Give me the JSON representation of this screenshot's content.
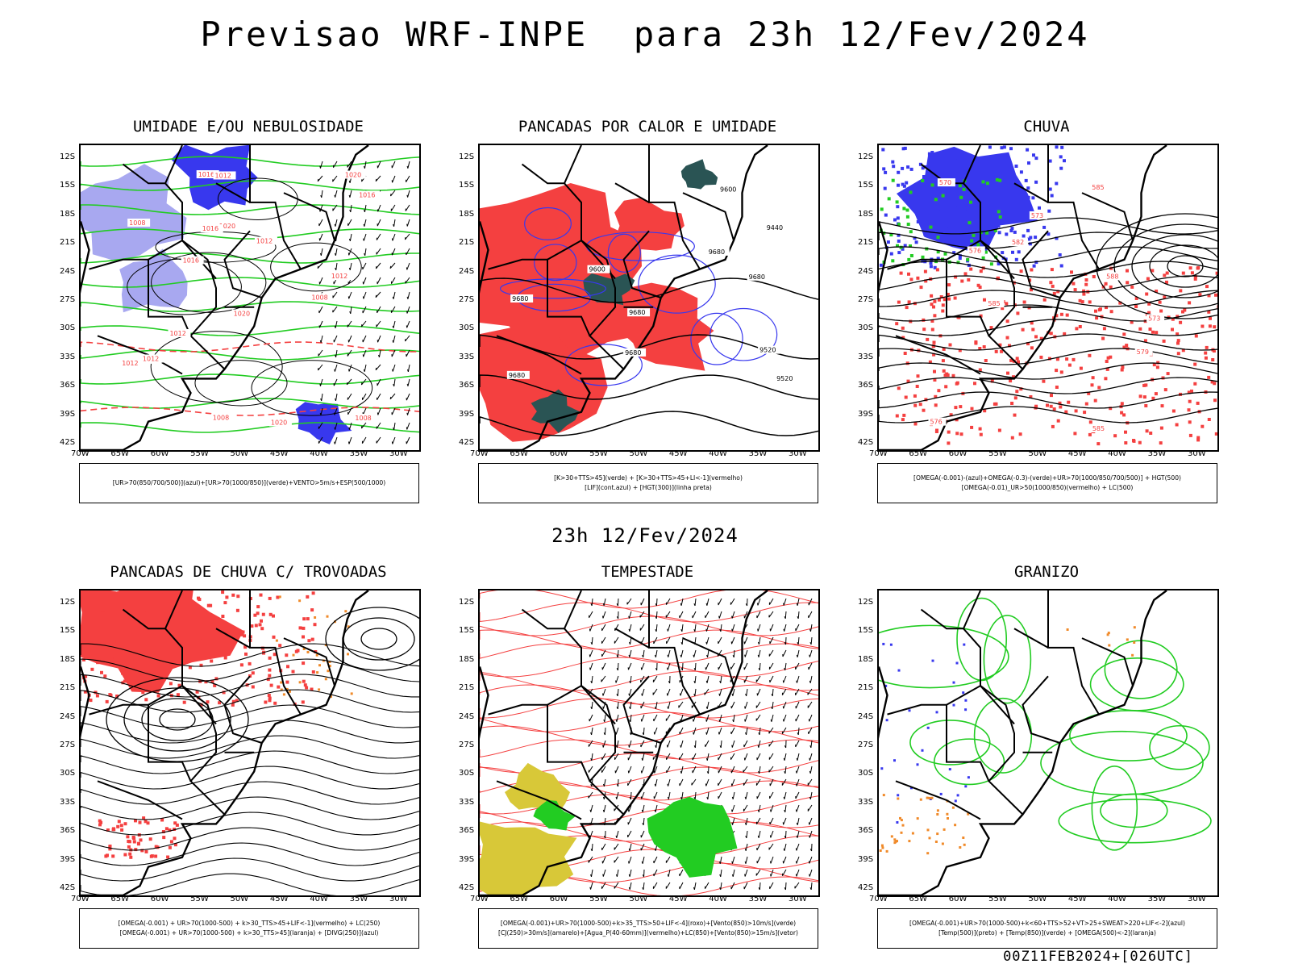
{
  "title": "Previsao WRF-INPE  para 23h 12/Fev/2024",
  "mid_title": "23h 12/Fev/2024",
  "footer": "00Z11FEB2024+[026UTC]",
  "lat_labels": [
    "12S",
    "15S",
    "18S",
    "21S",
    "24S",
    "27S",
    "30S",
    "33S",
    "36S",
    "39S",
    "42S"
  ],
  "lon_labels": [
    "70W",
    "65W",
    "60W",
    "55W",
    "50W",
    "45W",
    "40W",
    "35W",
    "30W"
  ],
  "colors": {
    "red": "#f44040",
    "green": "#22cc22",
    "blue": "#3838ee",
    "lightblue": "#a8a8f0",
    "teal": "#2a5454",
    "yellow": "#d8c838",
    "orange": "#f08a2a"
  },
  "panels": [
    {
      "title": "UMIDADE E/OU NEBULOSIDADE",
      "legend": [
        "[UR>70(850/700/500)](azul)+[UR>70(1000/850)](verde)+VENTO>5m/s+ESP(500/1000)"
      ],
      "contour_labels": [
        "1016",
        "1012",
        "1020",
        "1016",
        "1020",
        "1012",
        "1016",
        "1020",
        "1012",
        "1016",
        "1008",
        "1012",
        "1008",
        "1008",
        "1012",
        "1008",
        "1012",
        "1020",
        "1016"
      ]
    },
    {
      "title": "PANCADAS POR CALOR E UMIDADE",
      "legend": [
        "[K>30+TTS>45](verde) + [K>30+TTS>45+LI<-1](vermelho)",
        "[LIF](cont.azul) + [HGT(300)](linha preta)"
      ],
      "contour_labels": [
        "9680",
        "9680",
        "9680",
        "9680",
        "9680",
        "9600",
        "9520",
        "9440",
        "9600",
        "9520",
        "9680"
      ]
    },
    {
      "title": "CHUVA",
      "legend": [
        "[OMEGA(-0.001)-(azul)+OMEGA(-0.3)-(verde)+UR>70(1000/850/700/500)] + HGT(500)",
        "[OMEGA(-0.01)_UR>50(1000/850)(vermelho) + LC(500)"
      ],
      "contour_labels": [
        "585",
        "585",
        "585",
        "588",
        "582",
        "579",
        "576",
        "573",
        "576",
        "570",
        "573"
      ]
    },
    {
      "title": "PANCADAS DE CHUVA C/ TROVOADAS",
      "legend": [
        "[OMEGA(-0.001) + UR>70(1000-500) + k>30_TTS>45+LIF<-1](vermelho) + LC(250)",
        "[OMEGA(-0.001) + UR>70(1000-500) + k>30_TTS>45](laranja) + [DIVG(250)](azul)"
      ],
      "contour_labels": []
    },
    {
      "title": "TEMPESTADE",
      "legend": [
        "[OMEGA(-0.001)+UR>70(1000-500)+k>35_TTS>50+LIF<-4](roxo)+[Vento(850)>10m/s](verde)",
        "[CJ(250)>30m/s](amarelo)+[Agua_P(40-60mm)](vermelho)+LC(850)+[Vento(850)>15m/s](vetor)"
      ],
      "contour_labels": []
    },
    {
      "title": "GRANIZO",
      "legend": [
        "[OMEGA(-0.001)+UR>70(1000-500)+k<60+TTS>52+VT>25+SWEAT>220+LIF<-2](azul)",
        "[Temp(500)](preto) + [Temp(850)](verde) + [OMEGA(500)<-2](laranja)"
      ],
      "contour_labels": []
    }
  ]
}
